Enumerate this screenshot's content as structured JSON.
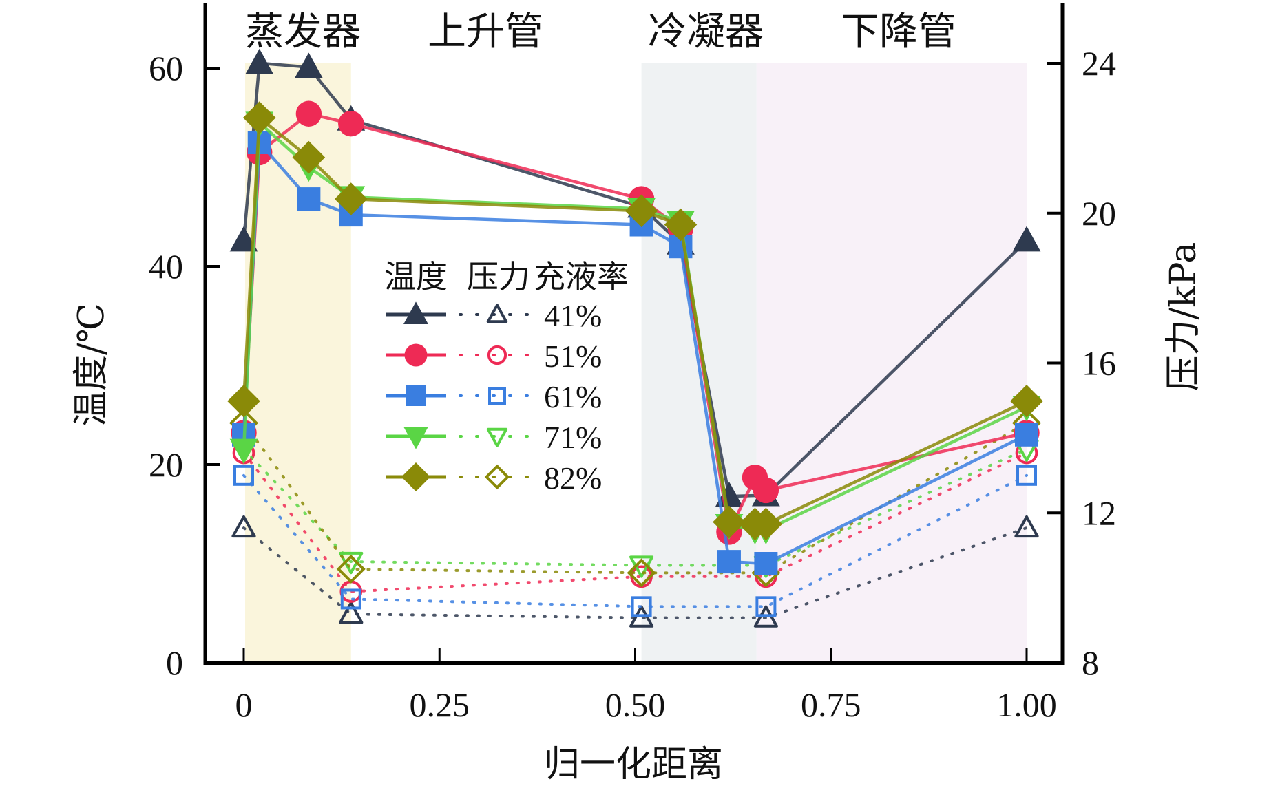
{
  "chart_data": {
    "type": "line",
    "title": "",
    "xlabel": "归一化距离",
    "ylabel_left": "温度/℃",
    "ylabel_right": "压力/kPa",
    "xlim": [
      -0.05,
      1.05
    ],
    "ylim_left": [
      0,
      60
    ],
    "ylim_right": [
      8,
      24
    ],
    "x_ticks": [
      0,
      0.25,
      0.5,
      0.75,
      1.0
    ],
    "x_tick_labels": [
      "0",
      "0.25",
      "0.50",
      "0.75",
      "1.00"
    ],
    "y_left_ticks": [
      0,
      20,
      40,
      60
    ],
    "y_left_tick_labels": [
      "0",
      "20",
      "40",
      "60"
    ],
    "y_right_ticks": [
      8,
      12,
      16,
      20,
      24
    ],
    "y_right_tick_labels": [
      "8",
      "12",
      "16",
      "20",
      "24"
    ],
    "grid": false,
    "regions": [
      {
        "label": "蒸发器",
        "x_range": [
          0.0,
          0.137
        ],
        "color": "#faf5dc"
      },
      {
        "label": "上升管",
        "x_range": [
          0.137,
          0.508
        ],
        "color": "#ffffff"
      },
      {
        "label": "冷凝器",
        "x_range": [
          0.508,
          0.655
        ],
        "color": "#eff2f3"
      },
      {
        "label": "下降管",
        "x_range": [
          0.655,
          1.0
        ],
        "color": "#f8f1f8"
      }
    ],
    "legend": {
      "placement": "center-left",
      "header": [
        "温度",
        "压力",
        "充液率"
      ]
    },
    "series": [
      {
        "name": "41%",
        "color": "#2e3a4f",
        "marker": "triangle-up",
        "temperature": {
          "x": [
            0,
            0.02,
            0.083,
            0.137,
            0.508,
            0.558,
            0.62,
            0.667,
            1.0
          ],
          "y": [
            42.6,
            60.5,
            60.1,
            54.8,
            46.0,
            42.3,
            16.8,
            16.9,
            42.6
          ]
        },
        "pressure": {
          "x": [
            0,
            0.137,
            0.508,
            0.667,
            1.0
          ],
          "y": [
            11.6,
            9.3,
            9.2,
            9.2,
            11.6
          ]
        }
      },
      {
        "name": "51%",
        "color": "#ee2a55",
        "marker": "circle",
        "temperature": {
          "x": [
            0,
            0.02,
            0.083,
            0.137,
            0.508,
            0.558,
            0.62,
            0.653,
            0.667,
            1.0
          ],
          "y": [
            23.2,
            51.5,
            55.4,
            54.4,
            46.8,
            43.8,
            13.2,
            18.7,
            17.4,
            23.2
          ]
        },
        "pressure": {
          "x": [
            0,
            0.137,
            0.508,
            0.667,
            1.0
          ],
          "y": [
            13.6,
            9.9,
            10.3,
            10.3,
            13.6
          ]
        }
      },
      {
        "name": "61%",
        "color": "#3a7ee0",
        "marker": "square",
        "temperature": {
          "x": [
            0,
            0.02,
            0.083,
            0.137,
            0.508,
            0.558,
            0.62,
            0.667,
            1.0
          ],
          "y": [
            23.0,
            52.5,
            46.8,
            45.2,
            44.2,
            42.0,
            10.2,
            10.0,
            23.0
          ]
        },
        "pressure": {
          "x": [
            0,
            0.137,
            0.508,
            0.667,
            1.0
          ],
          "y": [
            13.0,
            9.7,
            9.5,
            9.5,
            13.0
          ]
        }
      },
      {
        "name": "71%",
        "color": "#5ad545",
        "marker": "triangle-down",
        "temperature": {
          "x": [
            0,
            0.02,
            0.083,
            0.137,
            0.508,
            0.558,
            0.62,
            0.653,
            0.667,
            1.0
          ],
          "y": [
            21.5,
            54.5,
            50.0,
            47.0,
            45.8,
            44.5,
            13.9,
            13.4,
            13.4,
            25.8
          ]
        },
        "pressure": {
          "x": [
            0,
            0.137,
            0.508,
            0.667,
            1.0
          ],
          "y": [
            13.7,
            10.7,
            10.6,
            10.6,
            13.7
          ]
        }
      },
      {
        "name": "82%",
        "color": "#8a8a08",
        "marker": "diamond",
        "temperature": {
          "x": [
            0,
            0.02,
            0.083,
            0.137,
            0.508,
            0.558,
            0.62,
            0.653,
            0.667,
            1.0
          ],
          "y": [
            26.4,
            55.0,
            51.0,
            46.8,
            45.6,
            44.2,
            14.2,
            14.0,
            14.0,
            26.4
          ]
        },
        "pressure": {
          "x": [
            0,
            0.137,
            0.508,
            0.667,
            1.0
          ],
          "y": [
            14.4,
            10.5,
            10.4,
            10.4,
            14.4
          ]
        }
      }
    ]
  }
}
